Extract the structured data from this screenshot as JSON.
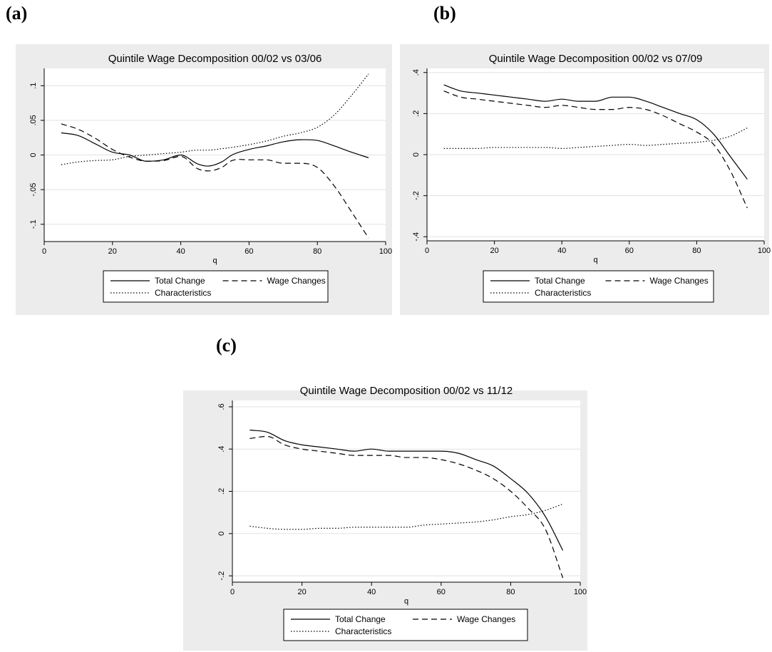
{
  "panel_labels": [
    "(a)",
    "(b)",
    "(c)"
  ],
  "colors": {
    "panel_background": "#ececec",
    "plot_background": "#ffffff",
    "grid": "#e2e2e2",
    "ink": "#000000"
  },
  "chart_data": [
    {
      "type": "line",
      "title": "Quintile Wage Decomposition 00/02 vs 03/06",
      "xlabel": "q",
      "ylabel": "",
      "xlim": [
        0,
        100
      ],
      "ylim": [
        -0.125,
        0.125
      ],
      "xticks": [
        0,
        20,
        40,
        60,
        80,
        100
      ],
      "xtick_labels": [
        "0",
        "20",
        "40",
        "60",
        "80",
        "100"
      ],
      "yticks": [
        -0.1,
        -0.05,
        0,
        0.05,
        0.1
      ],
      "ytick_labels": [
        "-.1",
        "-.05",
        "0",
        ".05",
        ".1"
      ],
      "grid": true,
      "legend_position": "bottom",
      "x": [
        5,
        10,
        15,
        20,
        25,
        30,
        35,
        40,
        45,
        48,
        52,
        55,
        60,
        65,
        70,
        75,
        80,
        85,
        90,
        95
      ],
      "series": [
        {
          "name": "Total Change",
          "style": "solid",
          "values": [
            0.032,
            0.028,
            0.016,
            0.004,
            0.0,
            -0.009,
            -0.007,
            0.0,
            -0.013,
            -0.016,
            -0.01,
            0.0,
            0.008,
            0.013,
            0.019,
            0.022,
            0.021,
            0.013,
            0.004,
            -0.004
          ]
        },
        {
          "name": "Wage Changes",
          "style": "dashed",
          "values": [
            0.045,
            0.037,
            0.024,
            0.008,
            -0.003,
            -0.009,
            -0.008,
            -0.002,
            -0.02,
            -0.023,
            -0.018,
            -0.008,
            -0.007,
            -0.007,
            -0.012,
            -0.012,
            -0.018,
            -0.045,
            -0.082,
            -0.12
          ]
        },
        {
          "name": "Characteristics",
          "style": "dotted",
          "values": [
            -0.014,
            -0.01,
            -0.008,
            -0.007,
            -0.002,
            0.0,
            0.002,
            0.004,
            0.007,
            0.007,
            0.009,
            0.011,
            0.015,
            0.02,
            0.027,
            0.032,
            0.04,
            0.058,
            0.086,
            0.117
          ]
        }
      ],
      "legend": [
        "Total Change",
        "Wage Changes",
        "Characteristics"
      ]
    },
    {
      "type": "line",
      "title": "Quintile Wage Decomposition 00/02 vs 07/09",
      "xlabel": "q",
      "ylabel": "",
      "xlim": [
        0,
        100
      ],
      "ylim": [
        -0.42,
        0.42
      ],
      "xticks": [
        0,
        20,
        40,
        60,
        80,
        100
      ],
      "xtick_labels": [
        "0",
        "20",
        "40",
        "60",
        "80",
        "100"
      ],
      "yticks": [
        -0.4,
        -0.2,
        0,
        0.2,
        0.4
      ],
      "ytick_labels": [
        "-.4",
        "-.2",
        "0",
        ".2",
        ".4"
      ],
      "grid": true,
      "legend_position": "bottom",
      "x": [
        5,
        10,
        15,
        20,
        25,
        30,
        35,
        40,
        45,
        50,
        55,
        60,
        65,
        70,
        75,
        80,
        85,
        90,
        95
      ],
      "series": [
        {
          "name": "Total Change",
          "style": "solid",
          "values": [
            0.34,
            0.31,
            0.3,
            0.29,
            0.28,
            0.27,
            0.26,
            0.27,
            0.26,
            0.26,
            0.28,
            0.28,
            0.26,
            0.23,
            0.2,
            0.17,
            0.1,
            -0.01,
            -0.12
          ]
        },
        {
          "name": "Wage Changes",
          "style": "dashed",
          "values": [
            0.31,
            0.28,
            0.27,
            0.26,
            0.25,
            0.24,
            0.23,
            0.24,
            0.23,
            0.22,
            0.22,
            0.23,
            0.22,
            0.19,
            0.15,
            0.11,
            0.05,
            -0.08,
            -0.26
          ]
        },
        {
          "name": "Characteristics",
          "style": "dotted",
          "values": [
            0.03,
            0.03,
            0.03,
            0.035,
            0.035,
            0.035,
            0.035,
            0.03,
            0.035,
            0.04,
            0.045,
            0.05,
            0.045,
            0.05,
            0.055,
            0.06,
            0.07,
            0.09,
            0.13
          ]
        }
      ],
      "legend": [
        "Total Change",
        "Wage Changes",
        "Characteristics"
      ]
    },
    {
      "type": "line",
      "title": "Quintile Wage Decomposition 00/02 vs 11/12",
      "xlabel": "q",
      "ylabel": "",
      "xlim": [
        0,
        100
      ],
      "ylim": [
        -0.23,
        0.63
      ],
      "xticks": [
        0,
        20,
        40,
        60,
        80,
        100
      ],
      "xtick_labels": [
        "0",
        "20",
        "40",
        "60",
        "80",
        "100"
      ],
      "yticks": [
        -0.2,
        0,
        0.2,
        0.4,
        0.6
      ],
      "ytick_labels": [
        "-.2",
        "0",
        ".2",
        ".4",
        ".6"
      ],
      "grid": true,
      "legend_position": "bottom",
      "x": [
        5,
        10,
        15,
        20,
        25,
        30,
        35,
        40,
        45,
        50,
        55,
        60,
        65,
        70,
        75,
        80,
        85,
        90,
        95
      ],
      "series": [
        {
          "name": "Total Change",
          "style": "solid",
          "values": [
            0.49,
            0.48,
            0.44,
            0.42,
            0.41,
            0.4,
            0.39,
            0.4,
            0.39,
            0.39,
            0.39,
            0.39,
            0.38,
            0.35,
            0.32,
            0.26,
            0.19,
            0.08,
            -0.08
          ]
        },
        {
          "name": "Wage Changes",
          "style": "dashed",
          "values": [
            0.45,
            0.46,
            0.42,
            0.4,
            0.39,
            0.38,
            0.37,
            0.37,
            0.37,
            0.36,
            0.36,
            0.35,
            0.33,
            0.3,
            0.26,
            0.2,
            0.12,
            0.02,
            -0.21
          ]
        },
        {
          "name": "Characteristics",
          "style": "dotted",
          "values": [
            0.035,
            0.025,
            0.02,
            0.02,
            0.025,
            0.025,
            0.03,
            0.03,
            0.03,
            0.03,
            0.04,
            0.045,
            0.05,
            0.055,
            0.065,
            0.08,
            0.09,
            0.11,
            0.14
          ]
        }
      ],
      "legend": [
        "Total Change",
        "Wage Changes",
        "Characteristics"
      ]
    }
  ]
}
